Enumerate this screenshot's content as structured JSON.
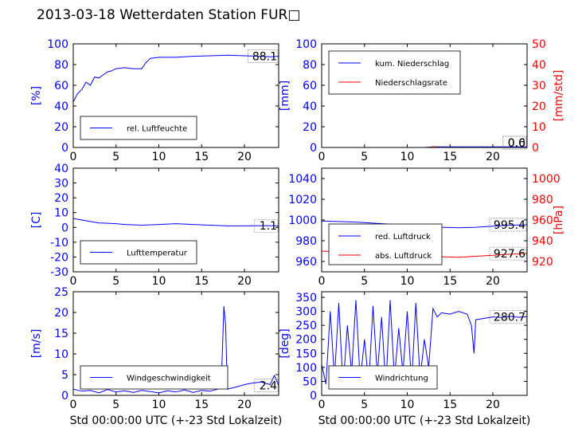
{
  "title": "2013-03-18 Wetterdaten Station FUR□",
  "colors": {
    "primary": "#0000ff",
    "secondary": "#ff0000",
    "axis": "#000000"
  },
  "chart_data": [
    {
      "type": "line",
      "id": "humidity",
      "ylabel": "[%]",
      "xlabel": "",
      "xlim": [
        0,
        24
      ],
      "ylim": [
        0,
        100
      ],
      "xticks": [
        0,
        5,
        10,
        15,
        20
      ],
      "yticks": [
        0,
        20,
        40,
        60,
        80,
        100
      ],
      "legend": "lower-left",
      "series": [
        {
          "name": "rel. Luftfeuchte",
          "color": "#0000ff",
          "x": [
            0,
            0.5,
            1,
            1.5,
            2,
            2.5,
            3,
            3.5,
            4,
            4.5,
            5,
            6,
            7,
            8,
            8.5,
            9,
            10,
            12,
            14,
            16,
            18,
            20,
            22,
            23,
            24
          ],
          "y": [
            44,
            52,
            56,
            63,
            60,
            68,
            67,
            70,
            73,
            74,
            76,
            77,
            76,
            76,
            82,
            86,
            87,
            87,
            88,
            88.5,
            89,
            88.5,
            88,
            87.5,
            88
          ]
        }
      ],
      "annotations": [
        {
          "text": "88.1",
          "x": 24,
          "y": 88.1
        }
      ]
    },
    {
      "type": "line",
      "id": "precipitation",
      "ylabel": "[mm]",
      "ylabel_right": "[mm/std]",
      "xlabel": "",
      "xlim": [
        0,
        24
      ],
      "ylim": [
        0,
        100
      ],
      "ylim_right": [
        0,
        50
      ],
      "xticks": [
        0,
        5,
        10,
        15,
        20
      ],
      "yticks": [
        0,
        20,
        40,
        60,
        80,
        100
      ],
      "yticks_right": [
        0,
        10,
        20,
        30,
        40,
        50
      ],
      "legend": "top-left",
      "series": [
        {
          "name": "kum. Niederschlag",
          "color": "#0000ff",
          "axis": "left",
          "x": [
            0,
            6,
            12,
            13,
            18,
            24
          ],
          "y": [
            0,
            0,
            0,
            0.6,
            0.6,
            0.6
          ]
        },
        {
          "name": "Niederschlagsrate",
          "color": "#ff0000",
          "axis": "right",
          "x": [
            0,
            12.5,
            13,
            13.5,
            24
          ],
          "y": [
            0,
            0,
            0.4,
            0,
            0
          ]
        }
      ],
      "annotations": [
        {
          "text": "0.6",
          "x": 24,
          "y": 0.6
        },
        {
          "text": "0.0",
          "x": 24,
          "y": 0
        }
      ]
    },
    {
      "type": "line",
      "id": "temperature",
      "ylabel": "[C]",
      "xlabel": "",
      "xlim": [
        0,
        24
      ],
      "ylim": [
        -30,
        40
      ],
      "xticks": [
        0,
        5,
        10,
        15,
        20
      ],
      "yticks": [
        -30,
        -20,
        -10,
        0,
        10,
        20,
        30,
        40
      ],
      "legend": "lower-left",
      "series": [
        {
          "name": "Lufttemperatur",
          "color": "#0000ff",
          "x": [
            0,
            0.5,
            1,
            2,
            3,
            4,
            5,
            6,
            8,
            10,
            12,
            14,
            16,
            18,
            20,
            22,
            24
          ],
          "y": [
            6,
            5.5,
            5,
            4,
            3,
            2.8,
            2.5,
            2,
            1.5,
            2,
            2.5,
            2,
            1.5,
            1,
            1,
            1.2,
            1.1
          ]
        }
      ],
      "annotations": [
        {
          "text": "1.1",
          "x": 24,
          "y": 1.1
        }
      ]
    },
    {
      "type": "line",
      "id": "pressure",
      "ylabel": "",
      "ylabel_right": "[hPa]",
      "xlabel": "",
      "xlim": [
        0,
        24
      ],
      "ylim": [
        950,
        1050
      ],
      "ylim_right": [
        910,
        1010
      ],
      "xticks": [
        0,
        5,
        10,
        15,
        20
      ],
      "yticks": [
        960,
        980,
        1000,
        1020,
        1040
      ],
      "yticks_right": [
        920,
        940,
        960,
        980,
        1000
      ],
      "legend": "lower-left",
      "series": [
        {
          "name": "red. Luftdruck",
          "color": "#0000ff",
          "axis": "left",
          "x": [
            0,
            4,
            8,
            12,
            14,
            16,
            18,
            20,
            22,
            24
          ],
          "y": [
            999,
            998,
            996,
            994,
            993,
            992.5,
            993,
            994,
            995,
            995.4
          ]
        },
        {
          "name": "abs. Luftdruck",
          "color": "#ff0000",
          "axis": "right",
          "x": [
            0,
            4,
            8,
            12,
            14,
            16,
            18,
            20,
            22,
            24
          ],
          "y": [
            930,
            928.5,
            927,
            925,
            924.5,
            924,
            925,
            926,
            927,
            927.6
          ]
        }
      ],
      "annotations": [
        {
          "text": "995.4",
          "x": 24,
          "y": 995.4
        },
        {
          "text": "927.6",
          "x": 24,
          "y": 927.6,
          "axis": "right"
        }
      ]
    },
    {
      "type": "line",
      "id": "windspeed",
      "ylabel": "[m/s]",
      "xlabel": "Std 00:00:00 UTC (+-23 Std Lokalzeit)",
      "xlim": [
        0,
        24
      ],
      "ylim": [
        0,
        25
      ],
      "xticks": [
        0,
        5,
        10,
        15,
        20
      ],
      "yticks": [
        0,
        5,
        10,
        15,
        20,
        25
      ],
      "legend": "lower-left",
      "series": [
        {
          "name": "Windgeschwindigkeit",
          "color": "#0000ff",
          "x": [
            0,
            1,
            2,
            3,
            4,
            5,
            6,
            7,
            8,
            9,
            10,
            11,
            12,
            13,
            14,
            15,
            16,
            17,
            17.3,
            17.6,
            17.8,
            18,
            19,
            20,
            21,
            22,
            23,
            23.5,
            24
          ],
          "y": [
            1.5,
            1,
            1.2,
            0.6,
            1.4,
            0.8,
            1.1,
            0.7,
            1.2,
            0.9,
            0.6,
            1.1,
            0.8,
            1.3,
            0.7,
            1.2,
            1.0,
            1.6,
            3,
            21.5,
            17,
            1.5,
            2,
            2.6,
            3,
            3.2,
            2.6,
            4.8,
            2.4
          ]
        }
      ],
      "annotations": [
        {
          "text": "2.4",
          "x": 24,
          "y": 2.4
        }
      ]
    },
    {
      "type": "line",
      "id": "winddirection",
      "ylabel": "[deg]",
      "xlabel": "Std 00:00:00 UTC (+-23 Std Lokalzeit)",
      "xlim": [
        0,
        24
      ],
      "ylim": [
        0,
        370
      ],
      "xticks": [
        0,
        5,
        10,
        15,
        20
      ],
      "yticks": [
        0,
        50,
        100,
        150,
        200,
        250,
        300,
        350
      ],
      "legend": "lower-left",
      "series": [
        {
          "name": "Windrichtung",
          "color": "#0000ff",
          "x": [
            0,
            0.5,
            1,
            1.5,
            2,
            2.5,
            3,
            3.5,
            4,
            4.5,
            5,
            5.5,
            6,
            6.5,
            7,
            7.5,
            8,
            8.5,
            9,
            9.5,
            10,
            10.5,
            11,
            11.5,
            12,
            12.5,
            13,
            13.5,
            14,
            15,
            16,
            17,
            17.5,
            17.8,
            18,
            19,
            20,
            21,
            22,
            23,
            24
          ],
          "y": [
            110,
            40,
            300,
            60,
            330,
            30,
            250,
            80,
            340,
            50,
            200,
            40,
            320,
            70,
            280,
            30,
            340,
            60,
            240,
            80,
            300,
            40,
            330,
            60,
            200,
            100,
            310,
            280,
            295,
            290,
            300,
            290,
            250,
            150,
            270,
            275,
            280,
            278,
            282,
            279,
            281
          ]
        }
      ],
      "annotations": [
        {
          "text": "280.7",
          "x": 24,
          "y": 280.7
        }
      ]
    }
  ]
}
